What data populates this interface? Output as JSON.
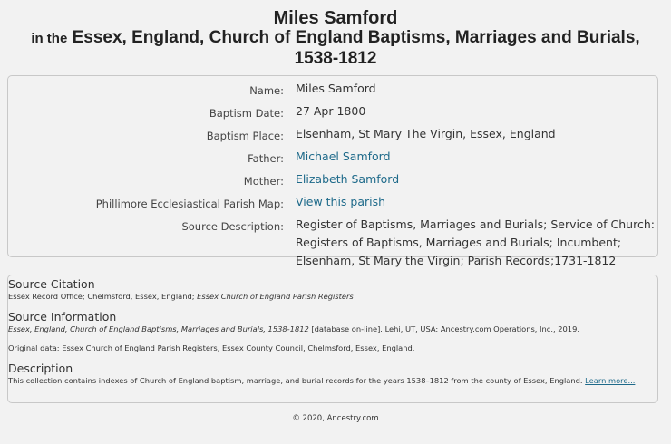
{
  "header": {
    "name": "Miles Samford",
    "in_the": "in the",
    "collection_line1": "Essex, England, Church of England Baptisms, Marriages and Burials,",
    "collection_line2": "1538-1812"
  },
  "record": {
    "fields": [
      {
        "label": "Name:",
        "value": "Miles Samford"
      },
      {
        "label": "Baptism Date:",
        "value": "27 Apr 1800"
      },
      {
        "label": "Baptism Place:",
        "value": "Elsenham, St Mary The Virgin, Essex, England"
      },
      {
        "label": "Father:",
        "value": "Michael Samford"
      },
      {
        "label": "Mother:",
        "value": "Elizabeth Samford"
      },
      {
        "label": "Phillimore Ecclesiastical Parish Map:",
        "value": "View this parish"
      }
    ],
    "source_description": {
      "label": "Source Description:",
      "line1": "Register of Baptisms, Marriages and Burials; Service of Church:",
      "line2": "Registers of Baptisms, Marriages and Burials; Incumbent;",
      "line3": "Elsenham, St Mary the Virgin; Parish Records;1731-1812"
    }
  },
  "source": {
    "citation_title": "Source Citation",
    "citation_text": "Essex Record Office; Chelmsford, Essex, England;",
    "citation_italic": "Essex Church of England Parish Registers",
    "info_title": "Source Information",
    "info_italic": "Essex, England, Church of England Baptisms, Marriages and Burials, 1538-1812",
    "info_text": "[database on-line]. Lehi, UT, USA: Ancestry.com Operations, Inc., 2019.",
    "original_data": "Original data: Essex Church of England Parish Registers, Essex County Council, Chelmsford, Essex, England.",
    "description_title": "Description",
    "description_text": "This collection contains indexes of Church of England baptism, marriage, and burial records for the years 1538–1812 from the county of Essex, England.",
    "learn_more": "Learn more..."
  },
  "footer": {
    "copyright": "© 2020, Ancestry.com"
  },
  "colors": {
    "link": "#1e6a8a",
    "background": "#f2f2f2",
    "border": "#c8c8c8"
  }
}
